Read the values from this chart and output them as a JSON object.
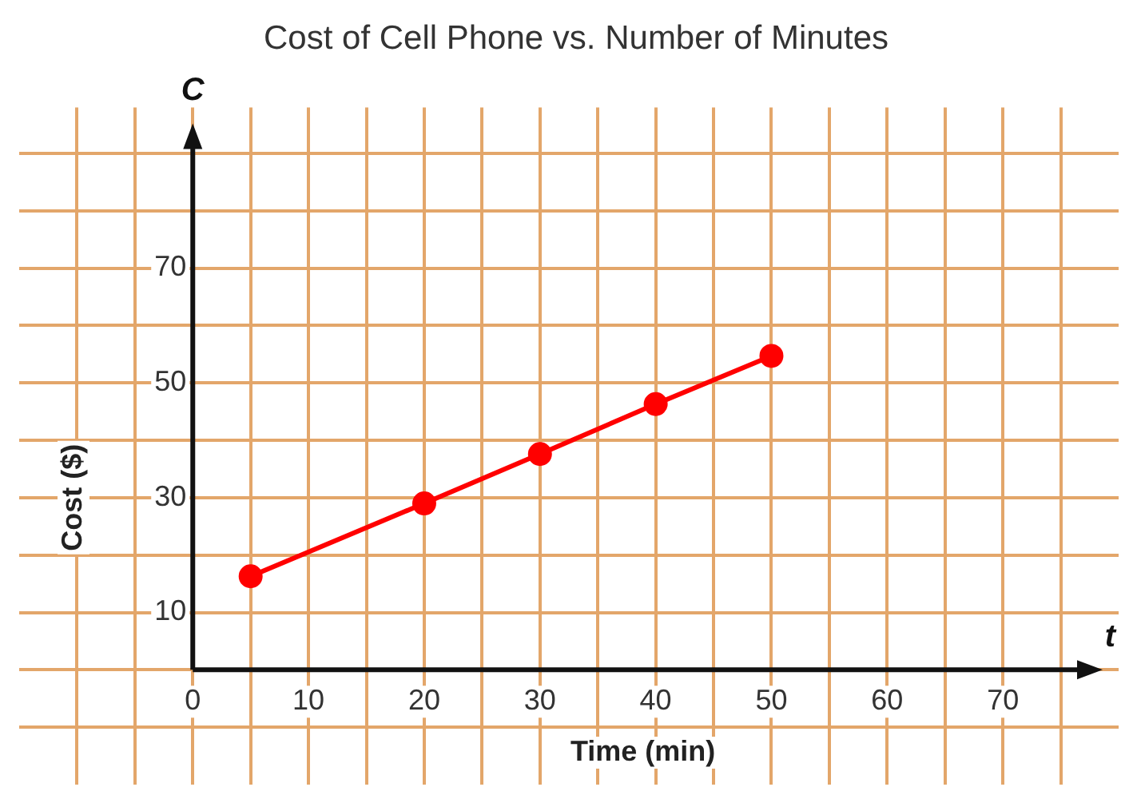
{
  "chart_data": {
    "type": "line",
    "title": "Cost of Cell Phone vs. Number of Minutes",
    "xlabel": "Time (min)",
    "ylabel": "Cost ($)",
    "annotations": [
      "C",
      "t"
    ],
    "x": [
      5,
      20,
      30,
      40,
      50
    ],
    "series": [
      {
        "color": "#ff0000",
        "values": [
          16.3,
          29,
          37.6,
          46.3,
          54.7
        ]
      }
    ],
    "xlim": [
      -15,
      80
    ],
    "xticks": [
      {
        "value": -10,
        "label": null
      },
      {
        "value": -5,
        "label": null
      },
      0,
      {
        "value": 5,
        "label": null
      },
      10,
      {
        "value": 15,
        "label": null
      },
      20,
      {
        "value": 25,
        "label": null
      },
      30,
      {
        "value": 35,
        "label": null
      },
      40,
      {
        "value": 45,
        "label": null
      },
      50,
      {
        "value": 55,
        "label": null
      },
      60,
      {
        "value": 65,
        "label": null
      },
      70,
      {
        "value": 75,
        "label": null
      }
    ],
    "ylim": [
      -20,
      98
    ],
    "yticks": [
      {
        "value": -10,
        "label": null
      },
      {
        "value": 0,
        "label": null
      },
      10,
      {
        "value": 20,
        "label": null
      },
      30,
      {
        "value": 40,
        "label": null
      },
      50,
      {
        "value": 60,
        "label": null
      },
      70,
      {
        "value": 80,
        "label": null
      },
      {
        "value": 90,
        "label": null
      }
    ],
    "grid": true,
    "legend": false,
    "marker": "circle",
    "line_style": "solid"
  }
}
